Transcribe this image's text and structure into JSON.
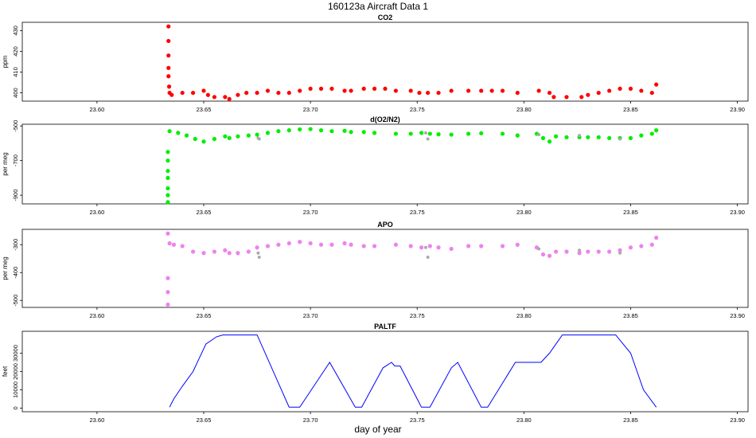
{
  "figure": {
    "title": "160123a    Aircraft Data 1",
    "xlabel": "day of year"
  },
  "chart_data": [
    {
      "type": "scatter",
      "title": "CO2",
      "xlabel": "",
      "ylabel": "ppm",
      "xlim": [
        23.565,
        23.905
      ],
      "ylim": [
        396,
        434
      ],
      "x_ticks": [
        "23.60",
        "23.65",
        "23.70",
        "23.75",
        "23.80",
        "23.85",
        "23.90"
      ],
      "y_ticks": [
        "400",
        "410",
        "420",
        "430"
      ],
      "grid": false,
      "colors": {
        "main": "#ff0000",
        "edge": "#000000"
      },
      "series": [
        {
          "x": [
            23.6335,
            23.6335,
            23.6335,
            23.6335,
            23.6335,
            23.6338,
            23.634,
            23.635,
            23.64,
            23.645,
            23.65,
            23.652,
            23.655,
            23.66,
            23.662,
            23.666,
            23.67,
            23.675,
            23.68,
            23.685,
            23.69,
            23.695,
            23.7,
            23.705,
            23.71,
            23.716,
            23.719,
            23.725,
            23.73,
            23.735,
            23.74,
            23.747,
            23.751,
            23.755,
            23.76,
            23.766,
            23.774,
            23.78,
            23.785,
            23.79,
            23.797,
            23.807,
            23.812,
            23.814,
            23.82,
            23.827,
            23.83,
            23.835,
            23.84,
            23.845,
            23.85,
            23.855,
            23.86,
            23.862
          ],
          "y": [
            432,
            425,
            418,
            412,
            408,
            403,
            400,
            399,
            400,
            400,
            401,
            399,
            398,
            398,
            397,
            399,
            400,
            400,
            401,
            400,
            400,
            401,
            402,
            402,
            402,
            401,
            401,
            402,
            402,
            402,
            401,
            401,
            400,
            400,
            400,
            401,
            401,
            401,
            401,
            401,
            400,
            401,
            400,
            398,
            398,
            398,
            399,
            400,
            401,
            402,
            402,
            401,
            400,
            404
          ]
        }
      ]
    },
    {
      "type": "scatter",
      "title": "d(O2/N2)",
      "xlabel": "",
      "ylabel": "per meg",
      "xlim": [
        23.565,
        23.905
      ],
      "ylim": [
        -950,
        -490
      ],
      "x_ticks": [
        "23.60",
        "23.65",
        "23.70",
        "23.75",
        "23.80",
        "23.85",
        "23.90"
      ],
      "y_ticks": [
        "-900",
        "-700",
        "-500"
      ],
      "grid": false,
      "colors": {
        "main": "#00ee00",
        "flagged": "#aaaaaa",
        "edge": "#000000"
      },
      "series": [
        {
          "x": [
            23.6332,
            23.6332,
            23.6332,
            23.6332,
            23.6332,
            23.6332,
            23.6332,
            23.634,
            23.638,
            23.642,
            23.646,
            23.65,
            23.655,
            23.66,
            23.662,
            23.666,
            23.671,
            23.675,
            23.68,
            23.685,
            23.69,
            23.695,
            23.7,
            23.705,
            23.71,
            23.716,
            23.719,
            23.725,
            23.73,
            23.74,
            23.747,
            23.752,
            23.756,
            23.76,
            23.766,
            23.774,
            23.78,
            23.79,
            23.797,
            23.806,
            23.809,
            23.812,
            23.815,
            23.82,
            23.826,
            23.83,
            23.835,
            23.84,
            23.845,
            23.85,
            23.855,
            23.86,
            23.862
          ],
          "y": [
            -940,
            -900,
            -860,
            -800,
            -760,
            -700,
            -650,
            -530,
            -540,
            -555,
            -575,
            -590,
            -575,
            -560,
            -570,
            -560,
            -555,
            -550,
            -540,
            -530,
            -525,
            -520,
            -518,
            -525,
            -530,
            -528,
            -535,
            -535,
            -540,
            -545,
            -545,
            -540,
            -545,
            -548,
            -550,
            -545,
            -542,
            -545,
            -555,
            -545,
            -570,
            -590,
            -560,
            -565,
            -565,
            -565,
            -565,
            -570,
            -570,
            -570,
            -555,
            -545,
            -525
          ]
        },
        {
          "name": "",
          "x": [
            23.6755,
            23.676,
            23.754,
            23.755,
            23.807,
            23.826,
            23.845
          ],
          "y": [
            -570,
            -575,
            -540,
            -575,
            -550,
            -555,
            -575
          ]
        }
      ]
    },
    {
      "type": "scatter",
      "title": "APO",
      "xlabel": "",
      "ylabel": "per meg",
      "xlim": [
        23.565,
        23.905
      ],
      "ylim": [
        -525,
        -245
      ],
      "x_ticks": [
        "23.60",
        "23.65",
        "23.70",
        "23.75",
        "23.80",
        "23.85",
        "23.90"
      ],
      "y_ticks": [
        "-500",
        "-400",
        "-300"
      ],
      "grid": false,
      "colors": {
        "main": "#ee82ee",
        "edge": "#7b2fbe",
        "flagged": "#aaaaaa"
      },
      "series": [
        {
          "x": [
            23.6332,
            23.6332,
            23.6332,
            23.6332,
            23.634,
            23.636,
            23.64,
            23.645,
            23.65,
            23.655,
            23.66,
            23.662,
            23.666,
            23.671,
            23.675,
            23.68,
            23.685,
            23.69,
            23.695,
            23.7,
            23.705,
            23.71,
            23.716,
            23.719,
            23.725,
            23.73,
            23.74,
            23.747,
            23.752,
            23.756,
            23.76,
            23.766,
            23.774,
            23.78,
            23.79,
            23.797,
            23.806,
            23.809,
            23.812,
            23.815,
            23.82,
            23.826,
            23.83,
            23.835,
            23.84,
            23.845,
            23.85,
            23.855,
            23.86,
            23.862
          ],
          "y": [
            -515,
            -470,
            -420,
            -260,
            -295,
            -300,
            -305,
            -325,
            -330,
            -325,
            -320,
            -330,
            -330,
            -325,
            -310,
            -305,
            -300,
            -295,
            -290,
            -295,
            -300,
            -300,
            -295,
            -300,
            -305,
            -305,
            -300,
            -305,
            -310,
            -305,
            -310,
            -315,
            -305,
            -305,
            -305,
            -300,
            -310,
            -335,
            -340,
            -325,
            -325,
            -330,
            -325,
            -325,
            -325,
            -320,
            -310,
            -305,
            -300,
            -275
          ]
        },
        {
          "name": "",
          "x": [
            23.6755,
            23.676,
            23.754,
            23.755,
            23.807,
            23.826,
            23.845
          ],
          "y": [
            -330,
            -345,
            -310,
            -345,
            -315,
            -320,
            -330
          ]
        }
      ]
    },
    {
      "type": "line",
      "title": "PALTF",
      "xlabel": "",
      "ylabel": "feet",
      "xlim": [
        23.565,
        23.905
      ],
      "ylim": [
        -2000,
        42000
      ],
      "x_ticks": [
        "23.60",
        "23.65",
        "23.70",
        "23.75",
        "23.80",
        "23.85",
        "23.90"
      ],
      "y_ticks": [
        "0",
        "10000",
        "20000",
        "30000"
      ],
      "grid": false,
      "colors": {
        "main": "#0000ff"
      },
      "series": [
        {
          "x": [
            23.634,
            23.636,
            23.64,
            23.645,
            23.651,
            23.656,
            23.659,
            23.675,
            23.69,
            23.695,
            23.705,
            23.709,
            23.721,
            23.724,
            23.734,
            23.738,
            23.7395,
            23.742,
            23.752,
            23.756,
            23.766,
            23.769,
            23.78,
            23.783,
            23.796,
            23.808,
            23.812,
            23.818,
            23.843,
            23.85,
            23.856,
            23.862
          ],
          "y": [
            500,
            5000,
            12000,
            20000,
            35000,
            39000,
            40000,
            40000,
            500,
            500,
            18000,
            25000,
            500,
            500,
            22000,
            25000,
            23000,
            23000,
            500,
            500,
            22000,
            25000,
            500,
            500,
            25000,
            25000,
            30000,
            40000,
            40000,
            30000,
            10000,
            500
          ]
        }
      ]
    }
  ]
}
